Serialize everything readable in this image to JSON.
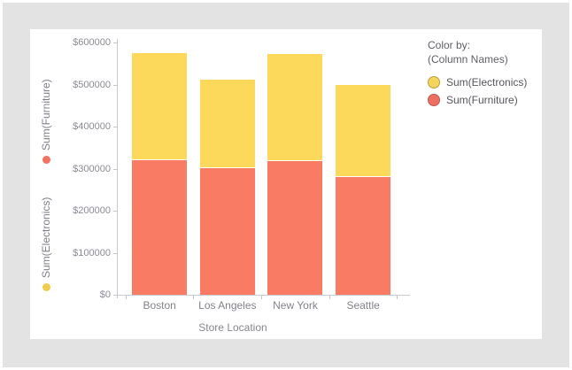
{
  "colors": {
    "background_gray": "#e3e3e3",
    "card_white": "#ffffff",
    "furniture": "#fa7b64",
    "electronics": "#fcd95b",
    "legend_electronics_fill": "#f5d45c",
    "legend_electronics_stroke": "#b8a045",
    "legend_furniture_fill": "#ee6f62",
    "legend_furniture_stroke": "#b85b50",
    "axis_line": "#c9c9d1",
    "tick_text": "#8a8a94"
  },
  "chart_data": {
    "type": "bar",
    "stacked": true,
    "categories": [
      "Boston",
      "Los Angeles",
      "New York",
      "Seattle"
    ],
    "series": [
      {
        "name": "Sum(Furniture)",
        "color": "#fa7b64",
        "values": [
          321000,
          302000,
          318000,
          281000
        ]
      },
      {
        "name": "Sum(Electronics)",
        "color": "#fcd95b",
        "values": [
          252000,
          209000,
          253000,
          216000
        ]
      }
    ],
    "totals": [
      573000,
      511000,
      571000,
      497000
    ],
    "xlabel": "Store Location",
    "y_axis": {
      "min": 0,
      "max": 600000,
      "tick_labels": [
        "$600000",
        "$500000",
        "$400000",
        "$300000",
        "$200000",
        "$100000",
        "$0"
      ],
      "titles": [
        {
          "label": "Sum(Furniture)",
          "color": "#f4705f"
        },
        {
          "label": "Sum(Electronics)",
          "color": "#f0cc4d"
        }
      ]
    },
    "grid": false,
    "legend_position": "right"
  },
  "legend": {
    "header": "Color by:",
    "subheader": "(Column Names)",
    "items": [
      {
        "label": "Sum(Electronics)",
        "fill": "#f5d45c",
        "stroke": "#b8a045"
      },
      {
        "label": "Sum(Furniture)",
        "fill": "#ee6f62",
        "stroke": "#b85b50"
      }
    ]
  }
}
